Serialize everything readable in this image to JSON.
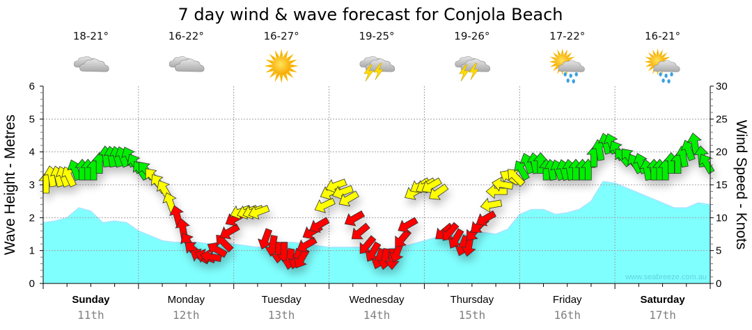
{
  "chart_data": {
    "type": "area",
    "title": "7 day wind & wave forecast for Conjola Beach",
    "ylabel_left": "Wave Height - Metres",
    "ylabel_right": "Wind Speed - Knots",
    "ylim_left": [
      0,
      6
    ],
    "ylim_right": [
      0,
      30
    ],
    "yticks_left": [
      "0",
      "1",
      "2",
      "3",
      "4",
      "5",
      "6"
    ],
    "yticks_right": [
      "0",
      "5",
      "10",
      "15",
      "20",
      "25",
      "30"
    ],
    "grid": true,
    "credit": "www.seabreeze.com.au",
    "days": [
      {
        "name": "Sunday",
        "date": "11th",
        "bold": true,
        "temp": "18-21°",
        "weather": "cloudy"
      },
      {
        "name": "Monday",
        "date": "12th",
        "bold": false,
        "temp": "16-22°",
        "weather": "cloudy"
      },
      {
        "name": "Tuesday",
        "date": "13th",
        "bold": false,
        "temp": "16-27°",
        "weather": "sunny"
      },
      {
        "name": "Wednesday",
        "date": "14th",
        "bold": false,
        "temp": "19-25°",
        "weather": "storm"
      },
      {
        "name": "Thursday",
        "date": "15th",
        "bold": false,
        "temp": "19-26°",
        "weather": "storm"
      },
      {
        "name": "Friday",
        "date": "16th",
        "bold": false,
        "temp": "17-22°",
        "weather": "sun-showers"
      },
      {
        "name": "Saturday",
        "date": "17th",
        "bold": true,
        "temp": "16-21°",
        "weather": "sun-showers"
      }
    ],
    "wave_series": {
      "name": "Wave Height (m)",
      "x_days": [
        0,
        0.125,
        0.25,
        0.375,
        0.5,
        0.625,
        0.75,
        0.875,
        1,
        1.125,
        1.25,
        1.375,
        1.5,
        1.625,
        1.75,
        1.875,
        2,
        2.125,
        2.25,
        2.375,
        2.5,
        2.625,
        2.75,
        2.875,
        3,
        3.125,
        3.25,
        3.375,
        3.5,
        3.625,
        3.75,
        3.875,
        4,
        4.125,
        4.25,
        4.375,
        4.5,
        4.625,
        4.75,
        4.875,
        5,
        5.125,
        5.25,
        5.375,
        5.5,
        5.625,
        5.75,
        5.875,
        6,
        6.125,
        6.25,
        6.375,
        6.5,
        6.625,
        6.75,
        6.875,
        7
      ],
      "values": [
        1.85,
        1.9,
        2.0,
        2.3,
        2.2,
        1.85,
        1.9,
        1.85,
        1.6,
        1.45,
        1.3,
        1.25,
        1.25,
        1.25,
        1.2,
        1.25,
        1.2,
        1.15,
        1.1,
        1.15,
        1.25,
        1.25,
        1.2,
        1.15,
        1.1,
        1.1,
        1.1,
        1.1,
        1.05,
        1.05,
        1.1,
        1.2,
        1.3,
        1.4,
        1.45,
        1.5,
        1.5,
        1.55,
        1.5,
        1.65,
        2.1,
        2.25,
        2.25,
        2.1,
        2.15,
        2.25,
        2.5,
        3.1,
        3.05,
        2.9,
        2.75,
        2.6,
        2.45,
        2.3,
        2.3,
        2.45,
        2.4
      ]
    },
    "wind_series": {
      "name": "Wind Speed (knots)",
      "x_days": [
        0.03,
        0.09,
        0.16,
        0.22,
        0.28,
        0.34,
        0.41,
        0.47,
        0.53,
        0.59,
        0.66,
        0.72,
        0.78,
        0.84,
        0.91,
        0.97,
        1.03,
        1.09,
        1.16,
        1.22,
        1.28,
        1.34,
        1.41,
        1.47,
        1.53,
        1.59,
        1.66,
        1.72,
        1.78,
        1.84,
        1.91,
        1.97,
        2.03,
        2.09,
        2.16,
        2.22,
        2.28,
        2.34,
        2.41,
        2.47,
        2.53,
        2.59,
        2.66,
        2.72,
        2.78,
        2.84,
        2.91,
        2.97,
        3.03,
        3.09,
        3.16,
        3.22,
        3.28,
        3.34,
        3.41,
        3.47,
        3.53,
        3.59,
        3.66,
        3.72,
        3.78,
        3.84,
        3.91,
        3.97,
        4.03,
        4.09,
        4.16,
        4.22,
        4.28,
        4.34,
        4.41,
        4.47,
        4.53,
        4.59,
        4.66,
        4.72,
        4.78,
        4.84,
        4.91,
        4.97,
        5.03,
        5.09,
        5.16,
        5.22,
        5.28,
        5.34,
        5.41,
        5.47,
        5.53,
        5.59,
        5.66,
        5.72,
        5.78,
        5.84,
        5.91,
        5.97,
        6.03,
        6.09,
        6.16,
        6.22,
        6.28,
        6.34,
        6.41,
        6.47,
        6.53,
        6.59,
        6.66,
        6.72,
        6.78,
        6.84,
        6.91,
        6.97
      ],
      "knots": [
        15,
        16,
        16,
        16,
        16,
        17,
        17,
        17,
        17,
        18,
        19,
        19,
        19,
        19,
        19,
        18,
        17,
        17,
        16,
        15,
        14,
        12,
        10,
        8,
        6,
        5,
        4,
        4,
        4,
        5,
        6,
        8,
        10,
        11,
        11,
        11,
        11,
        7,
        6,
        5,
        5,
        4,
        4,
        4,
        6,
        8,
        9,
        12,
        14,
        15,
        14,
        13,
        10,
        8,
        6,
        5,
        4,
        4,
        4,
        5,
        7,
        9,
        14,
        15,
        15,
        15,
        14,
        8,
        8,
        7,
        6,
        6,
        8,
        9,
        10,
        12,
        14,
        15,
        16,
        16,
        17,
        18,
        18,
        18,
        17,
        17,
        17,
        17,
        17,
        17,
        17,
        17,
        19,
        20,
        21,
        21,
        20,
        19,
        19,
        18,
        18,
        17,
        17,
        17,
        17,
        18,
        18,
        19,
        20,
        21,
        19,
        18,
        17,
        16,
        16,
        15
      ],
      "direction_deg": [
        0,
        -10,
        -15,
        -20,
        -25,
        -20,
        0,
        0,
        0,
        0,
        -5,
        -10,
        -15,
        -20,
        -25,
        -30,
        -35,
        -40,
        -40,
        -35,
        -30,
        -20,
        -15,
        -10,
        -30,
        -50,
        -60,
        -70,
        -80,
        -60,
        -45,
        -120,
        -120,
        -110,
        -110,
        -110,
        -110,
        -160,
        -170,
        -175,
        -180,
        -170,
        -160,
        -150,
        -120,
        -120,
        -120,
        -115,
        -115,
        -110,
        -110,
        -120,
        -120,
        -130,
        -140,
        -150,
        -160,
        -170,
        -180,
        -160,
        -140,
        -120,
        -120,
        -120,
        -120,
        -120,
        -125,
        -130,
        -140,
        -150,
        -160,
        -170,
        -140,
        -130,
        -120,
        -100,
        -90,
        -80,
        -60,
        -45,
        -30,
        -20,
        -10,
        0,
        0,
        -10,
        -20,
        -15,
        -10,
        0,
        0,
        0,
        0,
        -10,
        -15,
        -20,
        -30,
        -40,
        -40,
        -30,
        -20,
        -10,
        0,
        0,
        0,
        0,
        0,
        -10,
        -20,
        -10,
        -5,
        -30,
        -40,
        -45,
        -40,
        0
      ],
      "color_bands": [
        {
          "max_knots": 10,
          "color": "#ff0000"
        },
        {
          "max_knots": 16.5,
          "color": "#ffff00"
        },
        {
          "max_knots": 30,
          "color": "#00ee00"
        }
      ]
    },
    "colors": {
      "wave_fill": "#80ffff",
      "wave_line": "#a8e4ff",
      "grid": "#a0a0a0",
      "arrow_stroke": "#333333"
    }
  }
}
